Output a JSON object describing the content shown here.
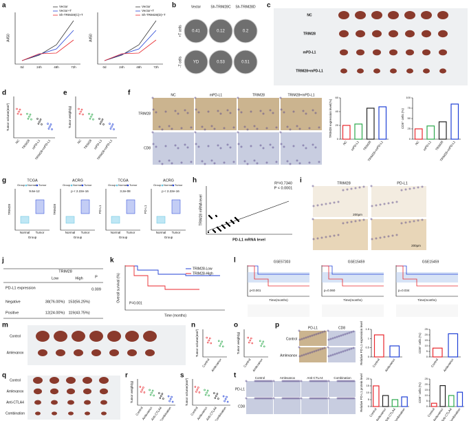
{
  "a": {
    "label": "a",
    "ylabel": "A450",
    "xcats": [
      "0d",
      "24h",
      "48h",
      "72h"
    ],
    "left_legend": [
      "Vector",
      "Vector+T",
      "Sh-TRIM28(C)+T"
    ],
    "right_legend": [
      "Vector",
      "Vector+T",
      "Sh-TRIM28(D)+T"
    ]
  },
  "b": {
    "label": "b",
    "columns": [
      "Vector",
      "Sh-TRIM28C",
      "Sh-TRIM28D"
    ],
    "rows": [
      "+T cells",
      "-T cells"
    ],
    "values": [
      0.41,
      0.12,
      0.2,
      "YD",
      0.53,
      0.51
    ]
  },
  "c": {
    "label": "c",
    "rows": [
      "NC",
      "TRIM28",
      "mPD-L1",
      "TRIM28+mPD-L1"
    ]
  },
  "d": {
    "label": "d",
    "ylabel": "Tumor volume(mm³)",
    "categories": [
      "NC",
      "TRIM28",
      "mPD-L1",
      "TRIM28+mPD-L1"
    ]
  },
  "e": {
    "label": "e",
    "ylabel": "Tumor weight(g)",
    "categories": [
      "NC",
      "TRIM28",
      "mPD-L1",
      "TRIM28+mPD-L1"
    ]
  },
  "f": {
    "label": "f",
    "columns": [
      "NC",
      "mPD-L1",
      "TRIM28",
      "TRIM28+mPD-L1"
    ],
    "rows": [
      "TRIM28",
      "CD8"
    ],
    "charts": [
      {
        "ylabel": "TRIM28 expression level(%)",
        "categories": [
          "NC",
          "mPD-L1",
          "TRIM28",
          "TRIM28+mPD-L1"
        ],
        "values": [
          20,
          22,
          45,
          47
        ],
        "colors": [
          "#e8262b",
          "#2aa84a",
          "#222222",
          "#1f3fd6"
        ],
        "ylim": [
          0,
          60
        ],
        "yticks": [
          0,
          20,
          40,
          60
        ]
      },
      {
        "ylabel": "CD8⁺ cells (%)",
        "categories": [
          "NC",
          "mPD-L1",
          "TRIM28",
          "TRIM28+mPD-L1"
        ],
        "values": [
          25,
          32,
          42,
          85
        ],
        "colors": [
          "#e8262b",
          "#2aa84a",
          "#222222",
          "#1f3fd6"
        ],
        "ylim": [
          0,
          100
        ],
        "yticks": [
          0,
          25,
          50,
          75,
          100
        ]
      }
    ]
  },
  "g": {
    "label": "g",
    "titles": [
      "TCGA",
      "ACRG",
      "TCGA",
      "ACRG"
    ],
    "ylabels": [
      "TRIM28",
      "TRIM28",
      "PD-L1",
      "PD-L1"
    ],
    "pvalues": [
      "9.6e-12",
      "p < 2.22e-16",
      "3.2e-08",
      "p < 2.22e-16"
    ],
    "legend": [
      "Group",
      "Normal",
      "Tumor"
    ],
    "groups": [
      "Normal",
      "Tumor"
    ],
    "xlabel": "Group"
  },
  "h": {
    "label": "h",
    "ylabel": "TRIM28 mRNA level",
    "xlabel": "PD-L1 mRNA level",
    "stats": [
      "R²=0.7340",
      "P < 0.0001"
    ]
  },
  "i": {
    "label": "i",
    "columns": [
      "TRIM28",
      "PD-L1"
    ],
    "scales": [
      "200μm",
      "200μm"
    ]
  },
  "j": {
    "label": "j",
    "header": "TRIM28",
    "p_header": "P",
    "subheaders": [
      "Low",
      "High"
    ],
    "row_title": "PD-L1 expression",
    "p": 0.009,
    "rows": [
      [
        "Negative",
        "38(76.00%)",
        "153(56.25%)"
      ],
      [
        "Positive",
        "12(24.00%)",
        "119(43.75%)"
      ]
    ]
  },
  "k": {
    "label": "k",
    "legend": [
      "TRIM28-Low",
      "TRIM28-High"
    ],
    "ylabel": "Overall survival (%)",
    "xlabel": "Time (months)",
    "p": "P=0.001"
  },
  "l": {
    "label": "l",
    "titles": [
      "GSE57303",
      "GSE15459",
      "GSE15459"
    ],
    "pvalues": [
      "p<0.001",
      "p=0.060",
      "p=0.034"
    ],
    "xlabel": "Time(months)"
  },
  "m": {
    "label": "m",
    "rows": [
      "Control",
      "Amlexanox"
    ]
  },
  "n": {
    "label": "n",
    "ylabel": "Tumor volume(mm³)",
    "categories": [
      "Control",
      "Amlexanox"
    ]
  },
  "o": {
    "label": "o",
    "ylabel": "Tumor weight(g)",
    "categories": [
      "Control",
      "Amlexanox"
    ]
  },
  "p": {
    "label": "p",
    "columns": [
      "PD-L1",
      "CD8"
    ],
    "rows": [
      "Control",
      "Amlexanox"
    ],
    "charts": [
      {
        "ylabel": "Relative PD-L1 expression level",
        "categories": [
          "Control",
          "Amlexanox"
        ],
        "values": [
          1.2,
          0.6
        ],
        "colors": [
          "#e8262b",
          "#1f3fd6"
        ],
        "ylim": [
          0,
          1.5
        ],
        "yticks": [
          0,
          0.5,
          1,
          1.5
        ]
      },
      {
        "ylabel": "CD8⁺ cells (%)",
        "categories": [
          "Control",
          "Amlexanox"
        ],
        "values": [
          8,
          21
        ],
        "colors": [
          "#e8262b",
          "#1f3fd6"
        ],
        "ylim": [
          0,
          25
        ],
        "yticks": [
          0,
          5,
          10,
          15,
          20,
          25
        ]
      }
    ]
  },
  "q": {
    "label": "q",
    "rows": [
      "Control",
      "Amlexanox",
      "Anti-CTLA4",
      "Combination"
    ]
  },
  "r": {
    "label": "r",
    "ylabel": "Tumor weight(g)",
    "categories": [
      "Control",
      "Amlexanox",
      "Anti-CTLA4",
      "Combination"
    ]
  },
  "s": {
    "label": "s",
    "ylabel": "Tumor volume(mm³)",
    "categories": [
      "Control",
      "Amlexanox",
      "Anti-CTLA4",
      "Combination"
    ]
  },
  "t": {
    "label": "t",
    "columns": [
      "Control",
      "Amlexanox",
      "Anti-CTLA4",
      "Combination"
    ],
    "rows": [
      "PD-L1",
      "CD8"
    ],
    "charts": [
      {
        "ylabel": "Relative PD-L1 protein level",
        "categories": [
          "Control",
          "Amlexanox",
          "Anti-CTLA4",
          "Combination"
        ],
        "values": [
          15,
          8,
          5,
          7
        ],
        "colors": [
          "#e8262b",
          "#222222",
          "#2aa84a",
          "#1f3fd6"
        ],
        "ylim": [
          0,
          20
        ],
        "yticks": [
          0,
          5,
          10,
          15,
          20
        ]
      },
      {
        "ylabel": "CD8⁺ cells (%)",
        "categories": [
          "Control",
          "Amlexanox",
          "Anti-CTLA4",
          "Combination"
        ],
        "values": [
          3,
          19,
          10,
          13
        ],
        "colors": [
          "#e8262b",
          "#222222",
          "#2aa84a",
          "#1f3fd6"
        ],
        "ylim": [
          0,
          25
        ],
        "yticks": [
          0,
          5,
          10,
          15,
          20,
          25
        ]
      }
    ]
  }
}
